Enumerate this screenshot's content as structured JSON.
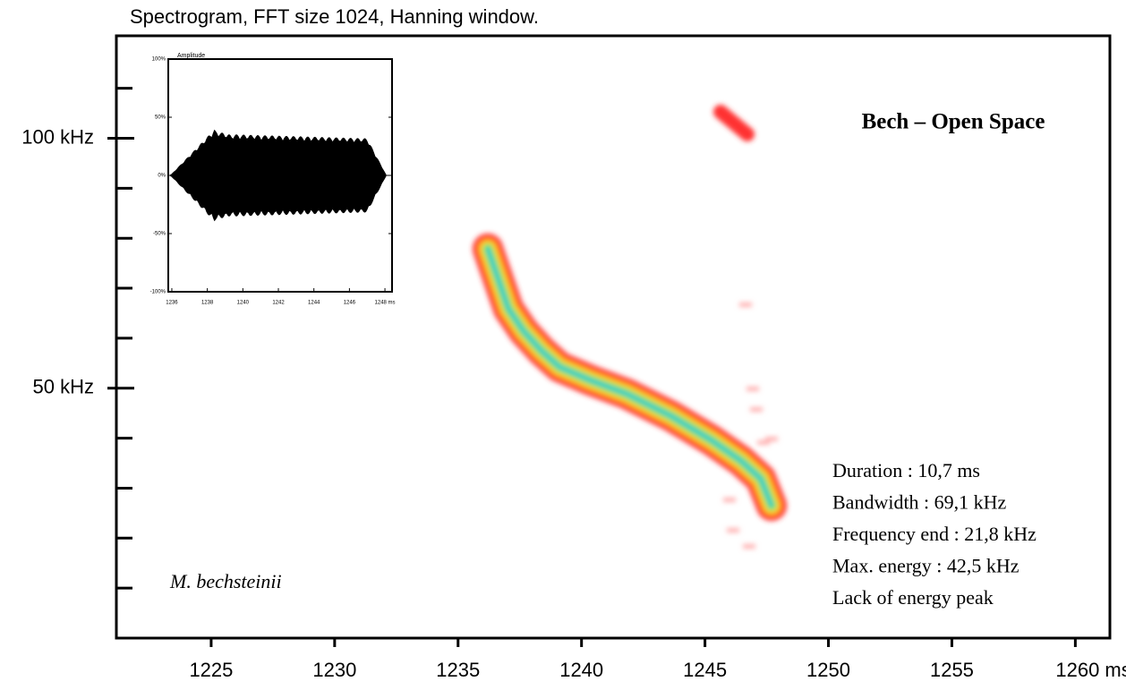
{
  "chart_data": {
    "type": "spectrogram",
    "title": "Spectrogram, FFT size 1024, Hanning window.",
    "xlim": [
      1221.16,
      1261.4
    ],
    "xticks": [
      1225,
      1230,
      1235,
      1240,
      1245,
      1250,
      1255,
      {
        "value": 1260,
        "label": "1260 ms"
      }
    ],
    "ylim": [
      0,
      120.5
    ],
    "yticks": [
      {
        "value": 50,
        "label": "50 kHz"
      },
      {
        "value": 100,
        "label": "100 kHz"
      }
    ],
    "y_minor_ticks": [
      10,
      20,
      30,
      40,
      60,
      70,
      80,
      90,
      110
    ],
    "heading": "Bech – Open Space",
    "species": "M. bechsteinii",
    "annotations": [
      "Duration : 10,7 ms",
      "Bandwidth : 69,1 kHz",
      "Frequency end : 21,8 kHz",
      "Max. energy : 42,5 kHz",
      "Lack of energy peak"
    ],
    "inset": {
      "title": "Amplitude",
      "xlim": [
        1235.8,
        1248.4
      ],
      "xticks": [
        1236,
        1238,
        1240,
        1242,
        1244,
        1246,
        {
          "value": 1248,
          "label": "1248 ms"
        }
      ],
      "ylim": [
        -100,
        100
      ],
      "yticks": [
        {
          "value": 100,
          "label": "100%"
        },
        {
          "value": 50,
          "label": "50%"
        },
        {
          "value": 0,
          "label": "0%"
        },
        {
          "value": -50,
          "label": "-50%"
        },
        {
          "value": -100,
          "label": "-100%"
        }
      ]
    }
  }
}
